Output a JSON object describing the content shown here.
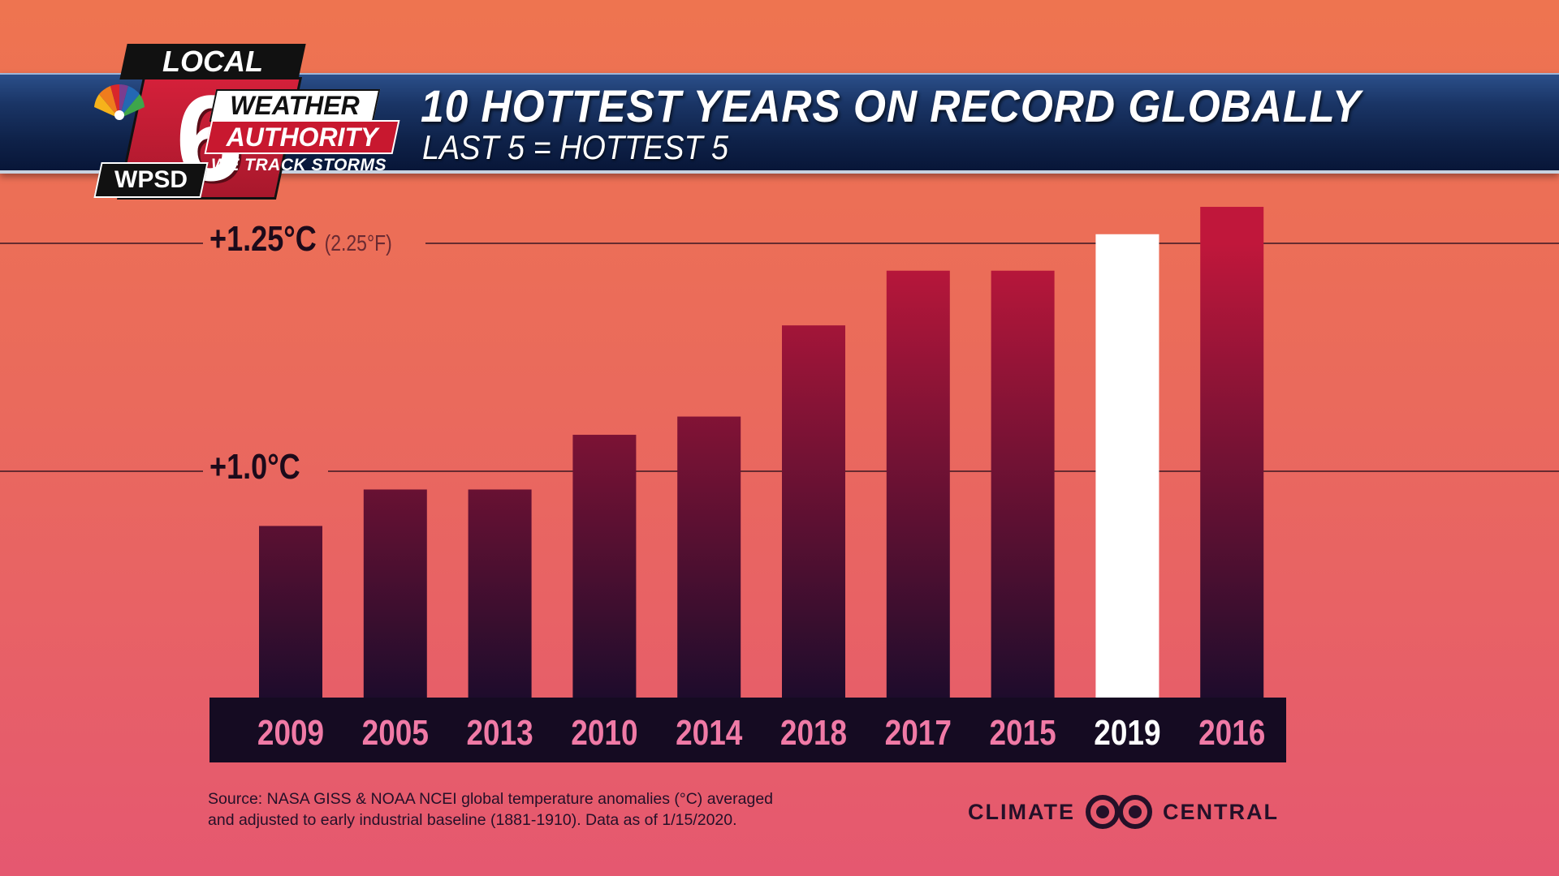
{
  "header": {
    "title": "10 HOTTEST YEARS ON RECORD GLOBALLY",
    "subtitle": "LAST 5 = HOTTEST 5"
  },
  "logo": {
    "local": "LOCAL",
    "number": "6",
    "station": "WPSD",
    "weather": "WEATHER",
    "authority": "AUTHORITY",
    "tagline": "WE TRACK STORMS"
  },
  "chart_data": {
    "type": "bar",
    "title": "10 HOTTEST YEARS ON RECORD GLOBALLY",
    "subtitle": "LAST 5 = HOTTEST 5",
    "categories": [
      "2009",
      "2005",
      "2013",
      "2010",
      "2014",
      "2018",
      "2017",
      "2015",
      "2019",
      "2016"
    ],
    "values": [
      0.94,
      0.98,
      0.98,
      1.04,
      1.06,
      1.16,
      1.22,
      1.22,
      1.26,
      1.29
    ],
    "highlight": "2019",
    "y_ticks": [
      {
        "value": 1.0,
        "label": "+1.0°C",
        "secondary": ""
      },
      {
        "value": 1.25,
        "label": "+1.25°C",
        "secondary": "(2.25°F)"
      }
    ],
    "colors": {
      "bar_top": "#c0173b",
      "bar_bottom": "#1e0c2c",
      "highlight": "#ffffff",
      "year_label": "#f07aa6",
      "year_label_highlight": "#ffffff"
    }
  },
  "footer": {
    "source_line1": "Source: NASA GISS & NOAA NCEI global temperature anomalies (°C) averaged",
    "source_line2": "and adjusted to early industrial baseline (1881-1910). Data as of 1/15/2020.",
    "brand_left": "CLIMATE",
    "brand_right": "CENTRAL"
  }
}
